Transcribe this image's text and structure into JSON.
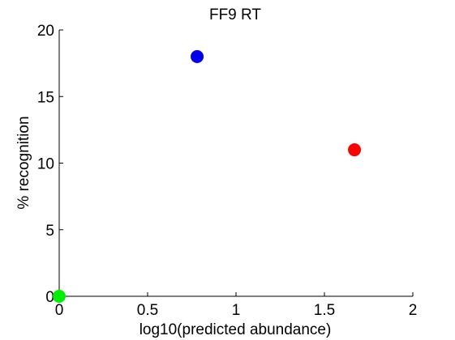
{
  "chart_data": {
    "type": "scatter",
    "title": "FF9 RT",
    "xlabel": "log10(predicted abundance)",
    "ylabel": "% recognition",
    "xlim": [
      0,
      2
    ],
    "ylim": [
      0,
      20
    ],
    "x_ticks": [
      {
        "value": 0,
        "label": "0"
      },
      {
        "value": 0.5,
        "label": "0.5"
      },
      {
        "value": 1,
        "label": "1"
      },
      {
        "value": 1.5,
        "label": "1.5"
      },
      {
        "value": 2,
        "label": "2"
      }
    ],
    "y_ticks": [
      {
        "value": 0,
        "label": "0"
      },
      {
        "value": 5,
        "label": "5"
      },
      {
        "value": 10,
        "label": "10"
      },
      {
        "value": 15,
        "label": "15"
      },
      {
        "value": 20,
        "label": "20"
      }
    ],
    "grid": false,
    "points": [
      {
        "x": 0.78,
        "y": 18,
        "color": "#0000ee"
      },
      {
        "x": 1.67,
        "y": 11,
        "color": "#ff0000"
      },
      {
        "x": 0.0,
        "y": 0,
        "color": "#00ee00"
      }
    ]
  }
}
